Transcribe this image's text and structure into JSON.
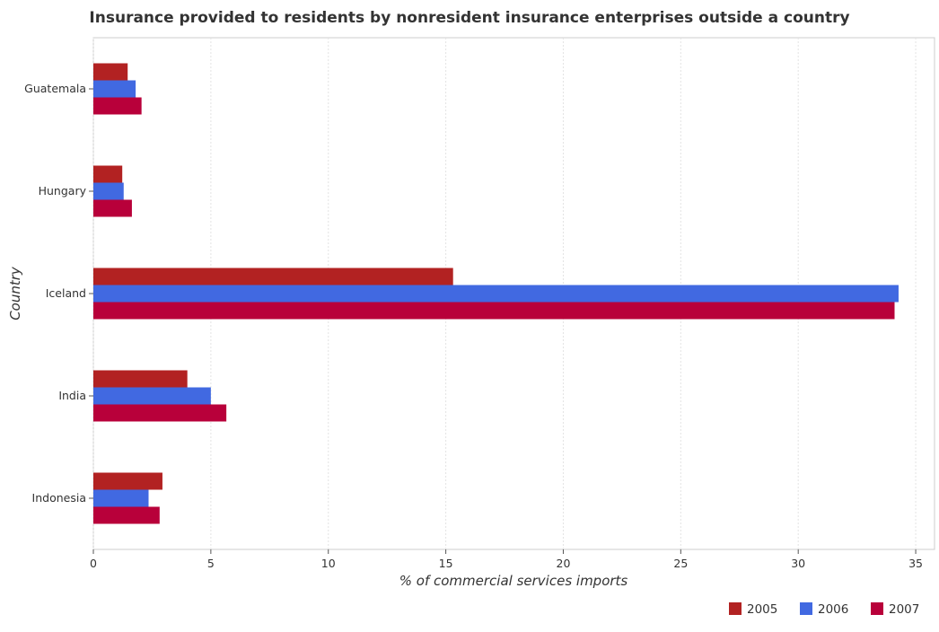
{
  "chart_data": {
    "type": "bar",
    "orientation": "horizontal",
    "title": "Insurance provided to residents by nonresident insurance enterprises outside a country",
    "xlabel": "% of commercial services imports",
    "ylabel": "Country",
    "categories": [
      "Guatemala",
      "Hungary",
      "Iceland",
      "India",
      "Indonesia"
    ],
    "series": [
      {
        "name": "2005",
        "color": "#b22222",
        "values": [
          1.46,
          1.23,
          15.31,
          4.0,
          2.94
        ]
      },
      {
        "name": "2006",
        "color": "#4169e1",
        "values": [
          1.8,
          1.29,
          34.27,
          5.0,
          2.35
        ]
      },
      {
        "name": "2007",
        "color": "#b8003a",
        "values": [
          2.05,
          1.64,
          34.1,
          5.66,
          2.82
        ]
      }
    ],
    "xlim": [
      0,
      35.8
    ],
    "xticks": [
      0,
      5,
      10,
      15,
      20,
      25,
      30,
      35
    ],
    "grid": true,
    "legend": "bottom-right"
  }
}
